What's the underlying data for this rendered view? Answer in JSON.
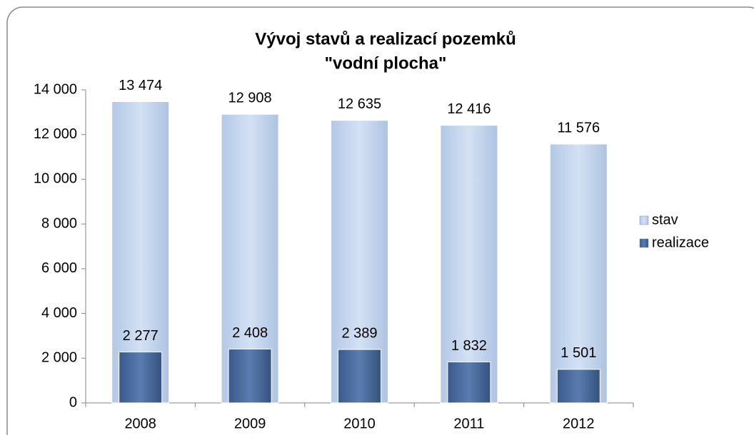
{
  "chart_data": {
    "type": "bar",
    "title": [
      "Vývoj stavů a realizací pozemků",
      "\"vodní plocha\""
    ],
    "categories": [
      "2008",
      "2009",
      "2010",
      "2011",
      "2012"
    ],
    "series": [
      {
        "name": "stav",
        "color": "#c6d9f1",
        "values": [
          13474,
          12908,
          12635,
          12416,
          11576
        ],
        "value_labels": [
          "13 474",
          "12 908",
          "12 635",
          "12 416",
          "11 576"
        ]
      },
      {
        "name": "realizace",
        "color": "#4a6a9c",
        "values": [
          2277,
          2408,
          2389,
          1832,
          1501
        ],
        "value_labels": [
          "2 277",
          "2 408",
          "2 389",
          "1 832",
          "1 501"
        ]
      }
    ],
    "ylim": [
      0,
      14000
    ],
    "yticks": [
      {
        "value": 0,
        "label": "0"
      },
      {
        "value": 2000,
        "label": "2 000"
      },
      {
        "value": 4000,
        "label": "4 000"
      },
      {
        "value": 6000,
        "label": "6 000"
      },
      {
        "value": 8000,
        "label": "8 000"
      },
      {
        "value": 10000,
        "label": "10 000"
      },
      {
        "value": 12000,
        "label": "12 000"
      },
      {
        "value": 14000,
        "label": "14 000"
      }
    ],
    "grid": false,
    "legend": "right"
  }
}
